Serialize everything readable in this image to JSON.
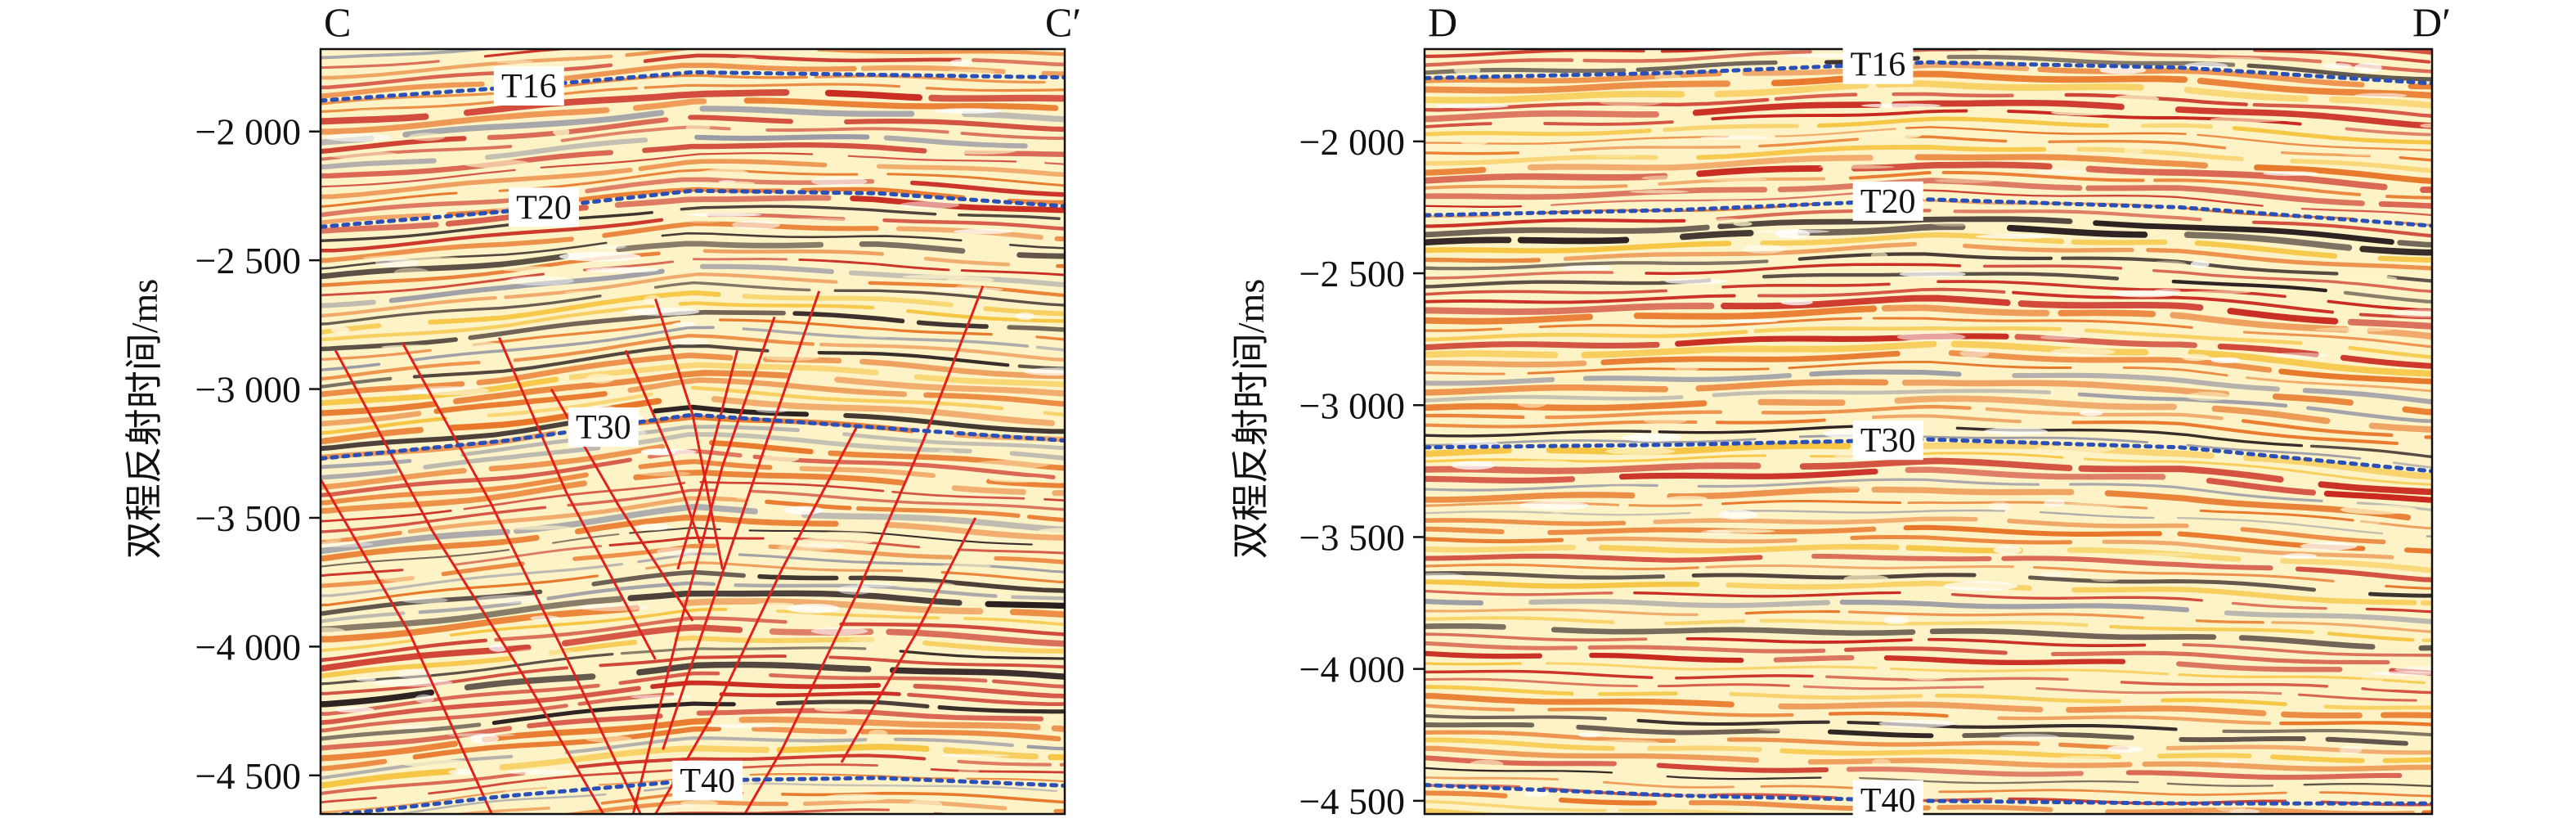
{
  "panels": [
    {
      "id": "left",
      "corner_left": "C",
      "corner_right": "C′",
      "ylabel": "双程反射时间/ms",
      "ylim": [
        -4650,
        -1680
      ],
      "ticks": [
        {
          "value": -2000,
          "label": "−2 000"
        },
        {
          "value": -2500,
          "label": "−2 500"
        },
        {
          "value": -3000,
          "label": "−3 000"
        },
        {
          "value": -3500,
          "label": "−3 500"
        },
        {
          "value": -4000,
          "label": "−4 000"
        },
        {
          "value": -4500,
          "label": "−4 500"
        }
      ],
      "horizons": [
        {
          "label": "T16",
          "label_pos": 0.28,
          "t": [
            -1880,
            -1830,
            -1770,
            -1780,
            -1790
          ]
        },
        {
          "label": "T20",
          "label_pos": 0.3,
          "t": [
            -2370,
            -2310,
            -2230,
            -2240,
            -2290
          ]
        },
        {
          "label": "T30",
          "label_pos": 0.38,
          "t": [
            -3270,
            -3200,
            -3100,
            -3150,
            -3200
          ]
        },
        {
          "label": "T40",
          "label_pos": 0.52,
          "t": [
            -4660,
            -4580,
            -4520,
            -4510,
            -4540
          ]
        }
      ],
      "faults": [
        [
          [
            0.02,
            -2850
          ],
          [
            0.15,
            -3550
          ],
          [
            0.27,
            -4100
          ],
          [
            0.38,
            -4650
          ]
        ],
        [
          [
            0.0,
            -3350
          ],
          [
            0.12,
            -3950
          ],
          [
            0.23,
            -4650
          ]
        ],
        [
          [
            0.11,
            -2820
          ],
          [
            0.23,
            -3450
          ],
          [
            0.34,
            -4100
          ],
          [
            0.43,
            -4650
          ]
        ],
        [
          [
            0.24,
            -2800
          ],
          [
            0.33,
            -3400
          ],
          [
            0.45,
            -4050
          ]
        ],
        [
          [
            0.31,
            -3000
          ],
          [
            0.4,
            -3450
          ],
          [
            0.5,
            -3900
          ]
        ],
        [
          [
            0.45,
            -2650
          ],
          [
            0.5,
            -3100
          ],
          [
            0.54,
            -3700
          ]
        ],
        [
          [
            0.41,
            -2850
          ],
          [
            0.47,
            -3250
          ],
          [
            0.51,
            -3600
          ]
        ],
        [
          [
            0.61,
            -2720
          ],
          [
            0.54,
            -3300
          ],
          [
            0.48,
            -3950
          ],
          [
            0.42,
            -4650
          ]
        ],
        [
          [
            0.67,
            -2620
          ],
          [
            0.6,
            -3200
          ],
          [
            0.53,
            -3800
          ],
          [
            0.46,
            -4400
          ]
        ],
        [
          [
            0.56,
            -2850
          ],
          [
            0.52,
            -3300
          ],
          [
            0.48,
            -3700
          ]
        ],
        [
          [
            0.72,
            -3150
          ],
          [
            0.62,
            -3700
          ],
          [
            0.53,
            -4250
          ],
          [
            0.45,
            -4650
          ]
        ],
        [
          [
            0.89,
            -2600
          ],
          [
            0.81,
            -3200
          ],
          [
            0.72,
            -3800
          ],
          [
            0.62,
            -4400
          ],
          [
            0.57,
            -4650
          ]
        ],
        [
          [
            0.88,
            -3500
          ],
          [
            0.8,
            -3950
          ],
          [
            0.7,
            -4450
          ]
        ]
      ]
    },
    {
      "id": "right",
      "corner_left": "D",
      "corner_right": "D′",
      "ylabel": "双程反射时间/ms",
      "ylim": [
        -4550,
        -1650
      ],
      "ticks": [
        {
          "value": -2000,
          "label": "−2 000"
        },
        {
          "value": -2500,
          "label": "−2 500"
        },
        {
          "value": -3000,
          "label": "−3 000"
        },
        {
          "value": -3500,
          "label": "−3 500"
        },
        {
          "value": -4000,
          "label": "−4 000"
        },
        {
          "value": -4500,
          "label": "−4 500"
        }
      ],
      "horizons": [
        {
          "label": "T16",
          "label_pos": 0.45,
          "t": [
            -1760,
            -1740,
            -1700,
            -1720,
            -1780
          ]
        },
        {
          "label": "T20",
          "label_pos": 0.46,
          "t": [
            -2280,
            -2260,
            -2220,
            -2250,
            -2320
          ]
        },
        {
          "label": "T30",
          "label_pos": 0.46,
          "t": [
            -3160,
            -3150,
            -3130,
            -3160,
            -3250
          ]
        },
        {
          "label": "T40",
          "label_pos": 0.46,
          "t": [
            -4440,
            -4480,
            -4500,
            -4510,
            -4510
          ]
        }
      ],
      "faults": []
    }
  ],
  "colors": {
    "fault": "#e0201b",
    "horizon": "#2b4fb5",
    "seis_light": "#fdf3c7",
    "seis_yellow": "#f6c542",
    "seis_orange": "#e8772a",
    "seis_red": "#c8261c",
    "seis_dark": "#2a2020",
    "seis_grey": "#9a9aa4"
  }
}
